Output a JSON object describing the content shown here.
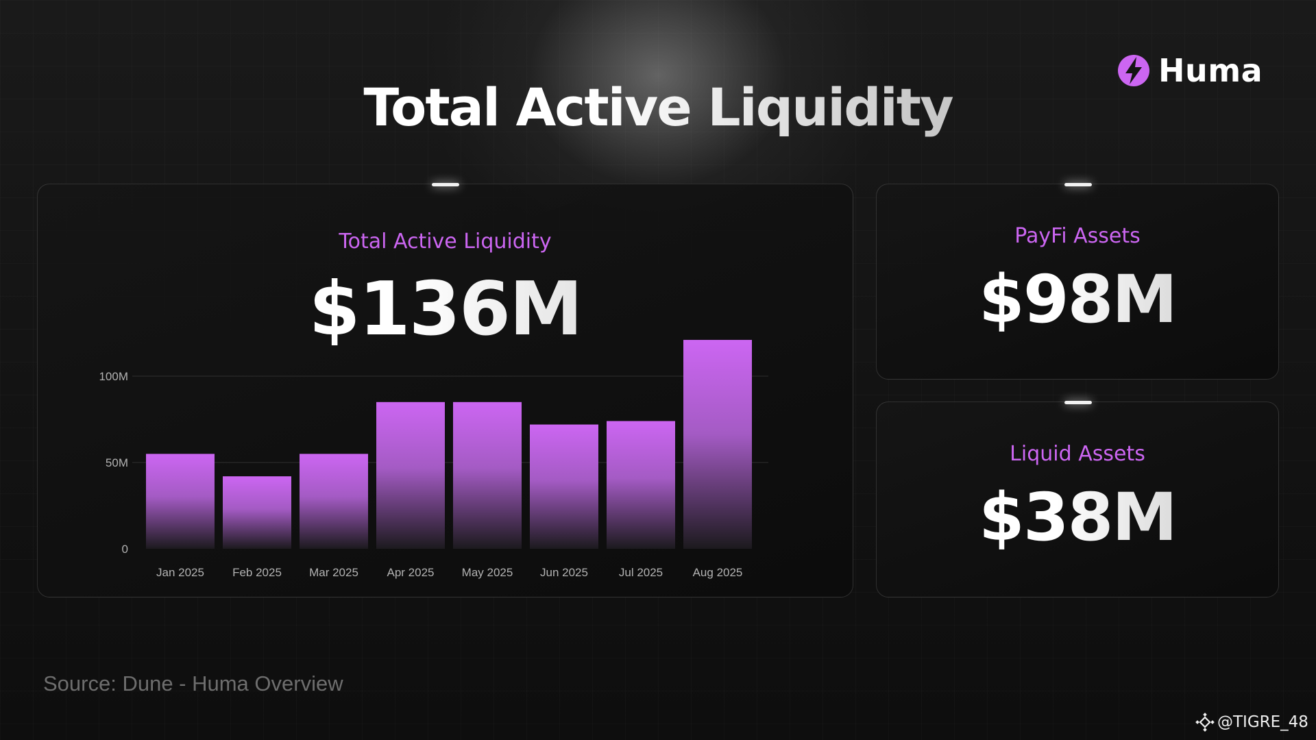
{
  "brand": {
    "name": "Huma",
    "accent": "#cc66f2"
  },
  "header": {
    "title": "Total Active Liquidity"
  },
  "main_card": {
    "label": "Total Active Liquidity",
    "value": "$136M"
  },
  "payfi_card": {
    "label": "PayFi Assets",
    "value": "$98M"
  },
  "liquid_card": {
    "label": "Liquid Assets",
    "value": "$38M"
  },
  "chart_data": {
    "type": "bar",
    "categories": [
      "Jan 2025",
      "Feb 2025",
      "Mar 2025",
      "Apr 2025",
      "May 2025",
      "Jun 2025",
      "Jul 2025",
      "Aug 2025"
    ],
    "values": [
      55,
      42,
      55,
      85,
      85,
      72,
      74,
      121
    ],
    "ylim": [
      0,
      100
    ],
    "yticks": [
      0,
      50,
      100
    ],
    "ytick_labels": [
      "0",
      "50M",
      "100M"
    ],
    "grid": true,
    "bar_color_top": "#cc66f2",
    "bar_color_bottom": "#1a1a1a"
  },
  "footer": {
    "source": "Source: Dune - Huma Overview",
    "watermark": "@TIGRE_48"
  }
}
